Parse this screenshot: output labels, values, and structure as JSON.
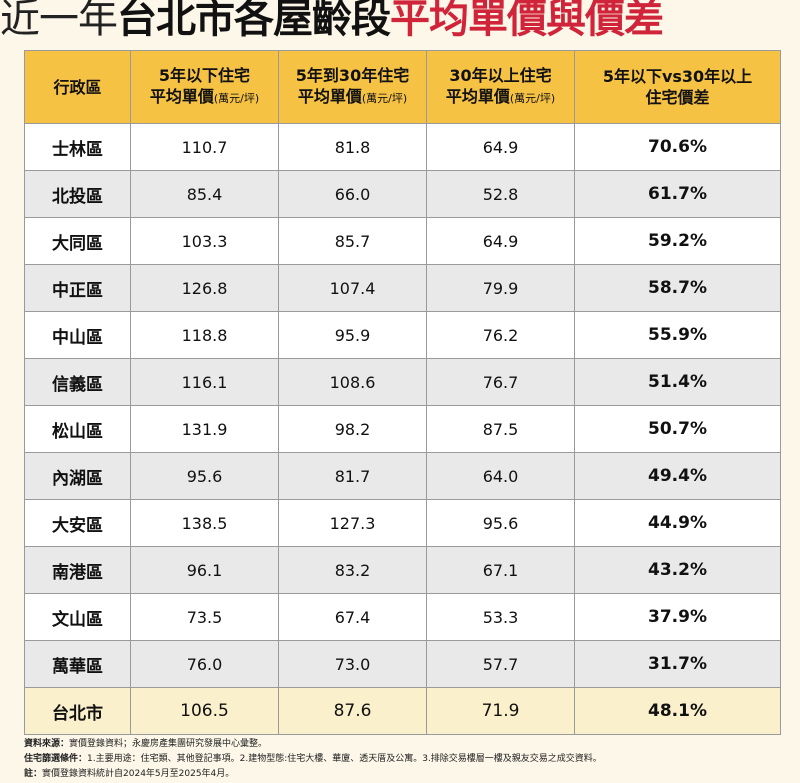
{
  "title": {
    "part1": "近一年",
    "part2": "台北市各屋齡段",
    "part3": "平均單價與價差"
  },
  "colors": {
    "header_bg": "#f6c244",
    "title_red": "#d0243a",
    "total_row_bg": "#fbf0cc",
    "stripe_bg": "#e9e9e9"
  },
  "chart_data": {
    "type": "table",
    "columns": [
      {
        "line1": "行政區",
        "line2": "",
        "unit": ""
      },
      {
        "line1": "5年以下住宅",
        "line2": "平均單價",
        "unit": "(萬元/坪)"
      },
      {
        "line1": "5年到30年住宅",
        "line2": "平均單價",
        "unit": "(萬元/坪)"
      },
      {
        "line1": "30年以上住宅",
        "line2": "平均單價",
        "unit": "(萬元/坪)"
      },
      {
        "line1": "5年以下vs30年以上",
        "line2": "住宅價差",
        "unit": ""
      }
    ],
    "rows": [
      [
        "士林區",
        "110.7",
        "81.8",
        "64.9",
        "70.6%"
      ],
      [
        "北投區",
        "85.4",
        "66.0",
        "52.8",
        "61.7%"
      ],
      [
        "大同區",
        "103.3",
        "85.7",
        "64.9",
        "59.2%"
      ],
      [
        "中正區",
        "126.8",
        "107.4",
        "79.9",
        "58.7%"
      ],
      [
        "中山區",
        "118.8",
        "95.9",
        "76.2",
        "55.9%"
      ],
      [
        "信義區",
        "116.1",
        "108.6",
        "76.7",
        "51.4%"
      ],
      [
        "松山區",
        "131.9",
        "98.2",
        "87.5",
        "50.7%"
      ],
      [
        "內湖區",
        "95.6",
        "81.7",
        "64.0",
        "49.4%"
      ],
      [
        "大安區",
        "138.5",
        "127.3",
        "95.6",
        "44.9%"
      ],
      [
        "南港區",
        "96.1",
        "83.2",
        "67.1",
        "43.2%"
      ],
      [
        "文山區",
        "73.5",
        "67.4",
        "53.3",
        "37.9%"
      ],
      [
        "萬華區",
        "76.0",
        "73.0",
        "57.7",
        "31.7%"
      ]
    ],
    "total_row": [
      "台北市",
      "106.5",
      "87.6",
      "71.9",
      "48.1%"
    ]
  },
  "notes": [
    {
      "label": "資料來源：",
      "text": "實價登錄資料；永慶房產集團研究發展中心彙整。"
    },
    {
      "label": "住宅篩選條件：",
      "text": "1.主要用途：住宅類、其他登記事項。2.建物型態:住宅大樓、華廈、透天厝及公寓。3.排除交易樓層一樓及親友交易之成交資料。"
    },
    {
      "label": "註：",
      "text": "實價登錄資料統計自2024年5月至2025年4月。"
    }
  ]
}
